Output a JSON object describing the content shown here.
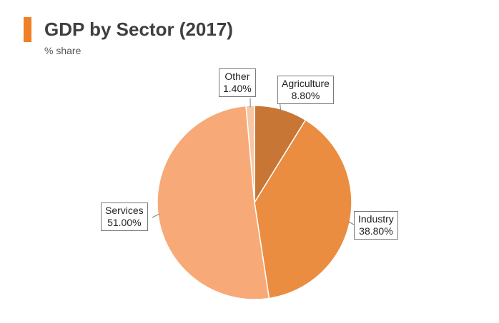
{
  "header": {
    "title": "GDP by Sector (2017)",
    "subtitle": "% share",
    "accent_color": "#f07f26"
  },
  "chart_data": {
    "type": "pie",
    "title": "GDP by Sector (2017)",
    "subtitle": "% share",
    "start_angle_deg": 0,
    "direction": "clockwise",
    "slices": [
      {
        "name": "Agriculture",
        "value": 8.8,
        "label": "8.80%",
        "color": "#c87636"
      },
      {
        "name": "Industry",
        "value": 38.8,
        "label": "38.80%",
        "color": "#ea8d41"
      },
      {
        "name": "Services",
        "value": 51.0,
        "label": "51.00%",
        "color": "#f7aa77"
      },
      {
        "name": "Other",
        "value": 1.4,
        "label": "1.40%",
        "color": "#f6c6a6"
      }
    ]
  }
}
